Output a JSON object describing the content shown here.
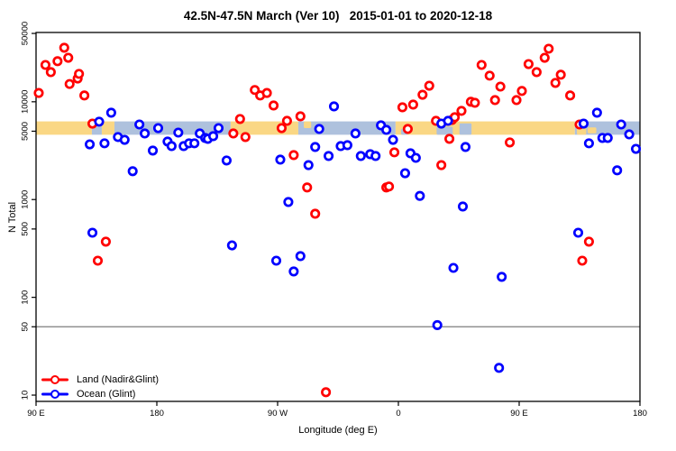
{
  "title": "42.5N-47.5N March (Ver 10)   2015-01-01 to 2020-12-18",
  "chart_data": {
    "type": "scatter",
    "title": "42.5N-47.5N March (Ver 10)   2015-01-01 to 2020-12-18",
    "xlabel": "Longitude (deg E)",
    "ylabel": "N Total",
    "grid": false,
    "legend_position": "bottom-left",
    "x_axis": {
      "range_deg_east": [
        90,
        540
      ],
      "ticks": [
        {
          "lon": 90,
          "label": "90 E"
        },
        {
          "lon": 180,
          "label": "180"
        },
        {
          "lon": 270,
          "label": "90 W"
        },
        {
          "lon": 360,
          "label": "0"
        },
        {
          "lon": 450,
          "label": "90 E"
        },
        {
          "lon": 540,
          "label": "180"
        }
      ]
    },
    "y_axis": {
      "scale": "log",
      "range": [
        10,
        50000
      ],
      "ticks": [
        {
          "value": 50000,
          "label": "50000"
        },
        {
          "value": 10000,
          "label": "10000"
        },
        {
          "value": 5000,
          "label": "5000"
        },
        {
          "value": 1000,
          "label": "1000"
        },
        {
          "value": 500,
          "label": "500"
        },
        {
          "value": 100,
          "label": "100"
        },
        {
          "value": 50,
          "label": "50"
        },
        {
          "value": 10,
          "label": "10"
        }
      ]
    },
    "reference_line": {
      "value": 50,
      "color": "#7d7d7d"
    },
    "surface_band": {
      "value_top": 6300,
      "value_bottom": 4600,
      "land_color": "#FAD784",
      "ocean_color": "#AEC1DD",
      "segments": [
        {
          "surface": "land",
          "from": 90,
          "to": 131.6
        },
        {
          "surface": "ocean",
          "from": 131.6,
          "to": 139
        },
        {
          "surface": "land",
          "from": 139,
          "to": 148.4
        },
        {
          "surface": "ocean",
          "from": 148.4,
          "to": 235
        },
        {
          "surface": "land",
          "from": 235,
          "to": 285.4
        },
        {
          "surface": "ocean",
          "from": 285.4,
          "to": 357.9
        },
        {
          "surface": "land",
          "from": 357.9,
          "to": 491.5
        },
        {
          "surface": "ocean",
          "from": 491.5,
          "to": 540
        }
      ],
      "patches": [
        {
          "surface": "ocean",
          "name": "black-sea",
          "from": 388.5,
          "to": 400.5,
          "y0": 0.4,
          "y1": 1
        },
        {
          "surface": "ocean",
          "name": "caspian-sea",
          "from": 405.5,
          "to": 414.5,
          "y0": 0.15,
          "y1": 1
        },
        {
          "surface": "ocean",
          "name": "gulf-of-lion",
          "from": 362,
          "to": 367,
          "y0": 0.55,
          "y1": 1
        },
        {
          "surface": "land",
          "name": "nova-scotia",
          "from": 289.5,
          "to": 295,
          "y0": 0.0,
          "y1": 0.5
        },
        {
          "surface": "land",
          "name": "japan-west",
          "from": 493,
          "to": 500,
          "y0": 0.35,
          "y1": 1
        },
        {
          "surface": "land",
          "name": "japan-east",
          "from": 501,
          "to": 507.5,
          "y0": 0.45,
          "y1": 0.9
        }
      ]
    },
    "series": [
      {
        "id": "land",
        "name": "Land (Nadir&Glint)",
        "color": "#FF0000",
        "marker": "open-circle",
        "points": [
          [
            92,
            12300
          ],
          [
            97,
            23800
          ],
          [
            101,
            20100
          ],
          [
            106,
            26000
          ],
          [
            111,
            35700
          ],
          [
            114,
            28200
          ],
          [
            115,
            15200
          ],
          [
            121,
            17300
          ],
          [
            122,
            19300
          ],
          [
            126,
            11600
          ],
          [
            132,
            5980
          ],
          [
            136,
            237
          ],
          [
            142,
            371
          ],
          [
            237,
            4740
          ],
          [
            242,
            6670
          ],
          [
            246,
            4360
          ],
          [
            253,
            13200
          ],
          [
            257,
            11600
          ],
          [
            262,
            12300
          ],
          [
            267,
            9160
          ],
          [
            273,
            5380
          ],
          [
            277,
            6380
          ],
          [
            282,
            2850
          ],
          [
            287,
            7100
          ],
          [
            292,
            1330
          ],
          [
            298,
            716
          ],
          [
            306,
            10.7
          ],
          [
            351,
            1330
          ],
          [
            353,
            1360
          ],
          [
            357,
            3040
          ],
          [
            363,
            8780
          ],
          [
            367,
            5270
          ],
          [
            371,
            9360
          ],
          [
            378,
            11800
          ],
          [
            383,
            14600
          ],
          [
            388,
            6380
          ],
          [
            392,
            2250
          ],
          [
            398,
            4180
          ],
          [
            400,
            6520
          ],
          [
            402,
            6950
          ],
          [
            407,
            8070
          ],
          [
            414,
            10000
          ],
          [
            417,
            9770
          ],
          [
            422,
            23800
          ],
          [
            428,
            18500
          ],
          [
            432,
            10400
          ],
          [
            436,
            14300
          ],
          [
            443,
            3840
          ],
          [
            448,
            10400
          ],
          [
            452,
            12900
          ],
          [
            457,
            24300
          ],
          [
            463,
            20100
          ],
          [
            469,
            28200
          ],
          [
            472,
            34900
          ],
          [
            477,
            15600
          ],
          [
            481,
            18900
          ],
          [
            488,
            11600
          ],
          [
            495,
            5860
          ],
          [
            497,
            237
          ],
          [
            502,
            371
          ]
        ]
      },
      {
        "id": "ocean",
        "name": "Ocean (Glint)",
        "color": "#0000FF",
        "marker": "open-circle",
        "points": [
          [
            130,
            3670
          ],
          [
            132,
            458
          ],
          [
            137,
            6260
          ],
          [
            141,
            3760
          ],
          [
            146,
            7730
          ],
          [
            151,
            4360
          ],
          [
            156,
            4080
          ],
          [
            162,
            1950
          ],
          [
            167,
            5860
          ],
          [
            171,
            4740
          ],
          [
            177,
            3170
          ],
          [
            181,
            5380
          ],
          [
            188,
            3920
          ],
          [
            191,
            3520
          ],
          [
            196,
            4840
          ],
          [
            200,
            3520
          ],
          [
            204,
            3760
          ],
          [
            208,
            3760
          ],
          [
            212,
            4740
          ],
          [
            216,
            4270
          ],
          [
            218,
            4180
          ],
          [
            222,
            4450
          ],
          [
            226,
            5380
          ],
          [
            232,
            2510
          ],
          [
            236,
            340
          ],
          [
            269,
            237
          ],
          [
            272,
            2560
          ],
          [
            278,
            944
          ],
          [
            282,
            184
          ],
          [
            287,
            264
          ],
          [
            293,
            2250
          ],
          [
            298,
            3450
          ],
          [
            301,
            5270
          ],
          [
            308,
            2790
          ],
          [
            312,
            8970
          ],
          [
            317,
            3520
          ],
          [
            322,
            3600
          ],
          [
            328,
            4740
          ],
          [
            332,
            2790
          ],
          [
            339,
            2910
          ],
          [
            343,
            2790
          ],
          [
            347,
            5740
          ],
          [
            351,
            5160
          ],
          [
            356,
            4080
          ],
          [
            365,
            1860
          ],
          [
            369,
            2970
          ],
          [
            373,
            2670
          ],
          [
            376,
            1090
          ],
          [
            389,
            52
          ],
          [
            392,
            5980
          ],
          [
            397,
            6380
          ],
          [
            401,
            200
          ],
          [
            408,
            849
          ],
          [
            410,
            3450
          ],
          [
            435,
            19
          ],
          [
            437,
            162
          ],
          [
            494,
            458
          ],
          [
            498,
            5980
          ],
          [
            502,
            3760
          ],
          [
            508,
            7730
          ],
          [
            512,
            4270
          ],
          [
            516,
            4270
          ],
          [
            523,
            1990
          ],
          [
            526,
            5860
          ],
          [
            532,
            4640
          ],
          [
            537,
            3300
          ]
        ]
      }
    ],
    "legend": {
      "items": [
        {
          "label": "Land (Nadir&Glint)",
          "color": "#FF0000"
        },
        {
          "label": "Ocean (Glint)",
          "color": "#0000FF"
        }
      ]
    }
  }
}
